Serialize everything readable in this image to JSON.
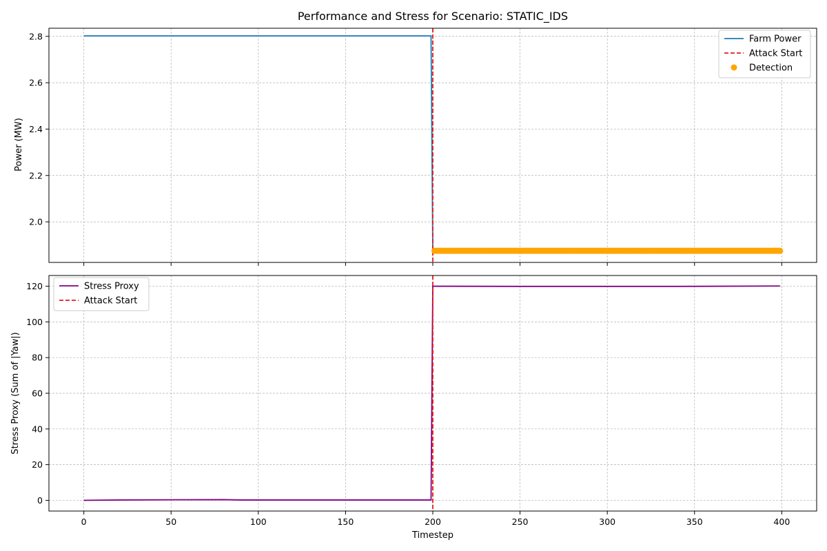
{
  "chart_data": [
    {
      "type": "line",
      "title": "Performance and Stress for Scenario: STATIC_IDS",
      "xlabel": "",
      "ylabel": "Power (MW)",
      "xlim": [
        -20,
        420
      ],
      "ylim": [
        1.825,
        2.835
      ],
      "xticks": [
        0,
        50,
        100,
        150,
        200,
        250,
        300,
        350,
        400
      ],
      "yticks": [
        2.0,
        2.2,
        2.4,
        2.6,
        2.8
      ],
      "grid": true,
      "legend_position": "upper right",
      "series": [
        {
          "name": "Farm Power",
          "type": "line",
          "color": "#1f77b4",
          "x": [
            0,
            199,
            200,
            399
          ],
          "y": [
            2.802,
            2.802,
            1.875,
            1.875
          ]
        },
        {
          "name": "Attack Start",
          "type": "vline",
          "color": "#e41a1c",
          "x": 200
        },
        {
          "name": "Detection",
          "type": "scatter",
          "color": "#ffa500",
          "x_range": [
            201,
            399
          ],
          "y": 1.875
        }
      ]
    },
    {
      "type": "line",
      "title": "",
      "xlabel": "Timestep",
      "ylabel": "Stress Proxy (Sum of |Yaw|)",
      "xlim": [
        -20,
        420
      ],
      "ylim": [
        -6,
        126
      ],
      "xticks": [
        0,
        50,
        100,
        150,
        200,
        250,
        300,
        350,
        400
      ],
      "yticks": [
        0,
        20,
        40,
        60,
        80,
        100,
        120
      ],
      "grid": true,
      "legend_position": "upper left",
      "series": [
        {
          "name": "Stress Proxy",
          "type": "line",
          "color": "#800080",
          "x": [
            0,
            20,
            80,
            90,
            199,
            200,
            250,
            340,
            399
          ],
          "y": [
            0,
            0.2,
            0.4,
            0.2,
            0.2,
            120,
            119.9,
            119.9,
            120.1
          ]
        },
        {
          "name": "Attack Start",
          "type": "vline",
          "color": "#e41a1c",
          "x": 200
        }
      ]
    }
  ]
}
